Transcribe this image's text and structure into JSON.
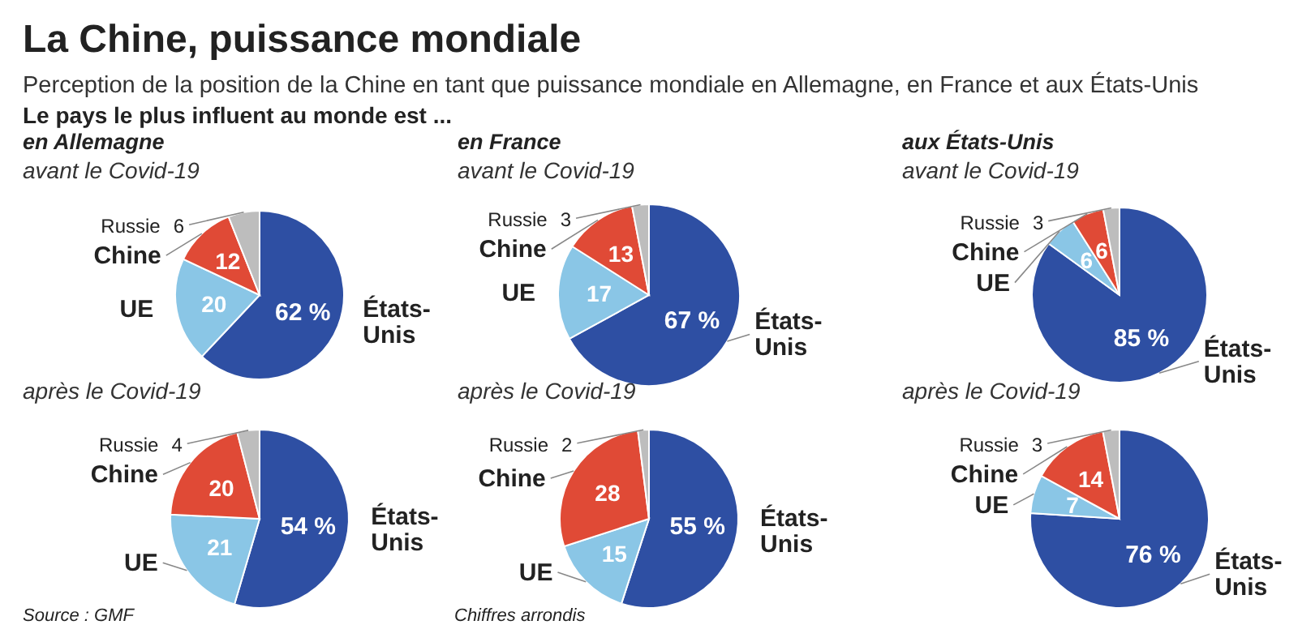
{
  "chart_data": [
    {
      "type": "other",
      "title": "La Chine, puissance mondiale",
      "subtitle": "Perception de la position de la Chine en tant que puissance mondiale en Allemagne, en France et aux États-Unis",
      "annotations": [
        "Le pays le plus influent au monde est ...",
        "Source : GMF",
        "Chiffres arrondis"
      ]
    },
    {
      "type": "pie",
      "title": "en Allemagne",
      "subtitle": "avant le Covid-19",
      "categories": [
        "États-Unis",
        "UE",
        "Chine",
        "Russie"
      ],
      "values": [
        62,
        20,
        12,
        6
      ],
      "value_labels": [
        "62 %",
        "20",
        "12",
        "6"
      ],
      "colors": [
        "#2e4fa3",
        "#8ac6e6",
        "#e04a36",
        "#bdbdbd"
      ]
    },
    {
      "type": "pie",
      "subtitle": "après le Covid-19",
      "categories": [
        "États-Unis",
        "UE",
        "Chine",
        "Russie"
      ],
      "values": [
        54,
        21,
        20,
        4
      ],
      "value_labels": [
        "54 %",
        "21",
        "20",
        "4"
      ],
      "colors": [
        "#2e4fa3",
        "#8ac6e6",
        "#e04a36",
        "#bdbdbd"
      ]
    },
    {
      "type": "pie",
      "title": "en France",
      "subtitle": "avant le Covid-19",
      "categories": [
        "États-Unis",
        "UE",
        "Chine",
        "Russie"
      ],
      "values": [
        67,
        17,
        13,
        3
      ],
      "value_labels": [
        "67 %",
        "17",
        "13",
        "3"
      ],
      "colors": [
        "#2e4fa3",
        "#8ac6e6",
        "#e04a36",
        "#bdbdbd"
      ]
    },
    {
      "type": "pie",
      "subtitle": "après le Covid-19",
      "categories": [
        "États-Unis",
        "UE",
        "Chine",
        "Russie"
      ],
      "values": [
        55,
        15,
        28,
        2
      ],
      "value_labels": [
        "55 %",
        "15",
        "28",
        "2"
      ],
      "colors": [
        "#2e4fa3",
        "#8ac6e6",
        "#e04a36",
        "#bdbdbd"
      ]
    },
    {
      "type": "pie",
      "title": "aux États-Unis",
      "subtitle": "avant le Covid-19",
      "categories": [
        "États-Unis",
        "UE",
        "Chine",
        "Russie"
      ],
      "values": [
        85,
        6,
        6,
        3
      ],
      "value_labels": [
        "85 %",
        "6",
        "6",
        "3"
      ],
      "colors": [
        "#2e4fa3",
        "#8ac6e6",
        "#e04a36",
        "#bdbdbd"
      ]
    },
    {
      "type": "pie",
      "subtitle": "après le Covid-19",
      "categories": [
        "États-Unis",
        "UE",
        "Chine",
        "Russie"
      ],
      "values": [
        76,
        7,
        14,
        3
      ],
      "value_labels": [
        "76 %",
        "7",
        "14",
        "3"
      ],
      "colors": [
        "#2e4fa3",
        "#8ac6e6",
        "#e04a36",
        "#bdbdbd"
      ]
    }
  ]
}
